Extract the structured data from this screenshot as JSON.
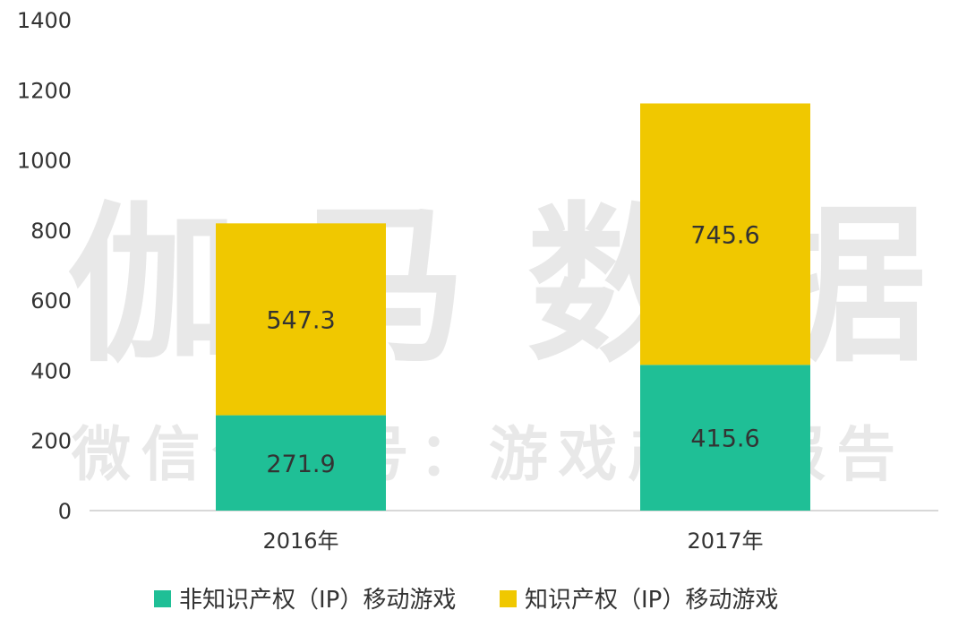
{
  "chart_data": {
    "type": "bar",
    "stacked": true,
    "categories": [
      "2016年",
      "2017年"
    ],
    "series": [
      {
        "name": "非知识产权（IP）移动游戏",
        "values": [
          271.9,
          415.6
        ],
        "color": "#1fbf96"
      },
      {
        "name": "知识产权（IP）移动游戏",
        "values": [
          547.3,
          745.6
        ],
        "color": "#f0c800"
      }
    ],
    "data_labels": [
      [
        "271.9",
        "415.6"
      ],
      [
        "547.3",
        "745.6"
      ]
    ],
    "yticks": [
      "0",
      "200",
      "400",
      "600",
      "800",
      "1000",
      "1200",
      "1400"
    ],
    "ylim": [
      0,
      1400
    ],
    "grid": false,
    "legend_position": "bottom",
    "title": "",
    "xlabel": "",
    "ylabel": ""
  },
  "watermark": {
    "brand": "伽马数据",
    "line": "微信公众号：游戏产业报告"
  }
}
